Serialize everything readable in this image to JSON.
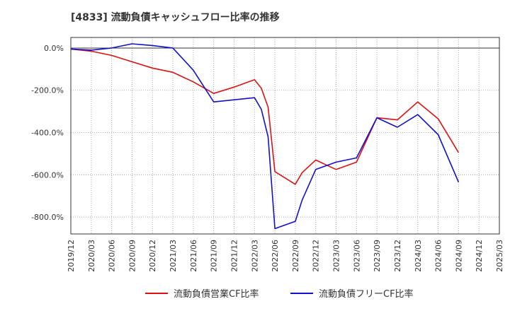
{
  "chart_data": {
    "type": "line",
    "title": "[4833]  流動負債キャッシュフロー比率の推移",
    "xlabel": "",
    "ylabel": "",
    "ylim": [
      -880,
      50
    ],
    "yticks": [
      {
        "value": 0,
        "label": "0.0%"
      },
      {
        "value": -200,
        "label": "-200.0%"
      },
      {
        "value": -400,
        "label": "-400.0%"
      },
      {
        "value": -600,
        "label": "-600.0%"
      },
      {
        "value": -800,
        "label": "-800.0%"
      }
    ],
    "x_ticks": [
      "2019/12",
      "2020/03",
      "2020/06",
      "2020/09",
      "2020/12",
      "2021/03",
      "2021/06",
      "2021/09",
      "2021/12",
      "2022/03",
      "2022/06",
      "2022/09",
      "2022/12",
      "2023/03",
      "2023/06",
      "2023/09",
      "2023/12",
      "2024/03",
      "2024/06",
      "2024/09",
      "2024/12",
      "2025/03"
    ],
    "grid": true,
    "legend_position": "bottom",
    "series": [
      {
        "name": "流動負債営業CF比率",
        "color": "#dd1111",
        "x": [
          "2019/12",
          "2020/03",
          "2020/06",
          "2020/09",
          "2020/12",
          "2021/03",
          "2021/06",
          "2021/09",
          "2021/12",
          "2022/03",
          "2022/04",
          "2022/05",
          "2022/06",
          "2022/09",
          "2022/10",
          "2022/12",
          "2023/03",
          "2023/06",
          "2023/09",
          "2023/12",
          "2024/03",
          "2024/06",
          "2024/09"
        ],
        "values": [
          -5,
          -15,
          -35,
          -65,
          -95,
          -115,
          -160,
          -215,
          -185,
          -150,
          -190,
          -280,
          -585,
          -645,
          -590,
          -530,
          -575,
          -540,
          -330,
          -340,
          -255,
          -335,
          -495
        ]
      },
      {
        "name": "流動負債フリーCF比率",
        "color": "#1111cc",
        "x": [
          "2019/12",
          "2020/03",
          "2020/06",
          "2020/09",
          "2020/12",
          "2021/03",
          "2021/04",
          "2021/06",
          "2021/09",
          "2021/12",
          "2022/03",
          "2022/04",
          "2022/05",
          "2022/06",
          "2022/09",
          "2022/10",
          "2022/12",
          "2023/03",
          "2023/06",
          "2023/09",
          "2023/12",
          "2024/03",
          "2024/06",
          "2024/09"
        ],
        "values": [
          -5,
          -10,
          0,
          20,
          12,
          0,
          -35,
          -105,
          -255,
          -245,
          -235,
          -290,
          -420,
          -855,
          -820,
          -720,
          -575,
          -540,
          -520,
          -330,
          -375,
          -315,
          -410,
          -635
        ]
      }
    ]
  }
}
